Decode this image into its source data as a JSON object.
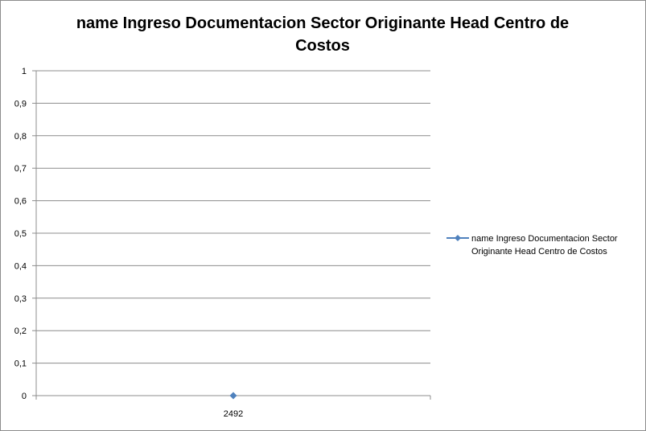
{
  "chart_data": {
    "type": "line",
    "title": "name Ingreso Documentacion Sector Originante Head Centro de Costos",
    "categories": [
      "2492"
    ],
    "series": [
      {
        "name": "name Ingreso Documentacion  Sector Originante Head Centro de Costos",
        "values": [
          0
        ],
        "color": "#4f81bd",
        "marker": "diamond"
      }
    ],
    "xlabel": "",
    "ylabel": "",
    "ylim": [
      0,
      1
    ],
    "yticks": [
      "0",
      "0,1",
      "0,2",
      "0,3",
      "0,4",
      "0,5",
      "0,6",
      "0,7",
      "0,8",
      "0,9",
      "1"
    ],
    "grid": true,
    "legend": "right"
  }
}
